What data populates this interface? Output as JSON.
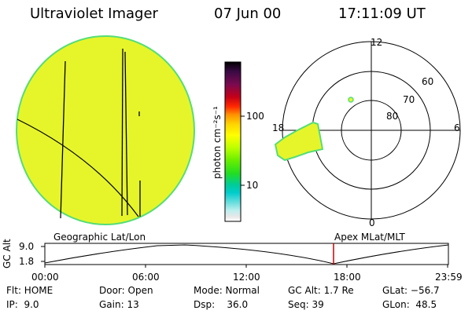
{
  "header": {
    "instrument": "Ultraviolet Imager",
    "date": "07 Jun 00",
    "time": "17:11:09 UT"
  },
  "colorbar": {
    "label": "photon cm⁻²s⁻¹",
    "tick_labels": [
      "100",
      "10"
    ],
    "colors": [
      "#000000",
      "#2a0a2e",
      "#4b0a4a",
      "#6a0a5a",
      "#8a0a3a",
      "#b00020",
      "#d80010",
      "#ff3300",
      "#ff8800",
      "#ffb000",
      "#ffd800",
      "#ffff00",
      "#ccff00",
      "#88ff00",
      "#33ee00",
      "#00dd66",
      "#00cccc",
      "#44dddd",
      "#99eeee",
      "#dddddd",
      "#ffffff"
    ]
  },
  "polar_plot": {
    "ring_labels": [
      "60",
      "70",
      "80"
    ],
    "mlt_labels": {
      "top": "12",
      "left": "18",
      "right": "6",
      "bottom": "0"
    }
  },
  "timeline": {
    "ylabel": "GC Alt",
    "y_ticks": [
      "9.0",
      "1.8"
    ],
    "left_title": "Geographic Lat/Lon",
    "right_title": "Apex MLat/MLT",
    "x_ticks": [
      "00:00",
      "06:00",
      "12:00",
      "18:00",
      "23:59"
    ],
    "current_time_color": "#cc0000"
  },
  "info": {
    "col1": [
      "Flt: HOME",
      "IP:  9.0"
    ],
    "col2": [
      "Door: Open",
      "Gain: 13"
    ],
    "col3": [
      "Mode: Normal",
      "Dsp:    36.0"
    ],
    "col4": [
      "GC Alt: 1.7 Re",
      "Seq: 39"
    ],
    "col5": [
      "GLat: −56.7",
      "GLon:  48.5"
    ]
  },
  "colors": {
    "disk": "#e6f52a",
    "disk_edge": "#55dd77",
    "aurora": "#e6f52a"
  }
}
